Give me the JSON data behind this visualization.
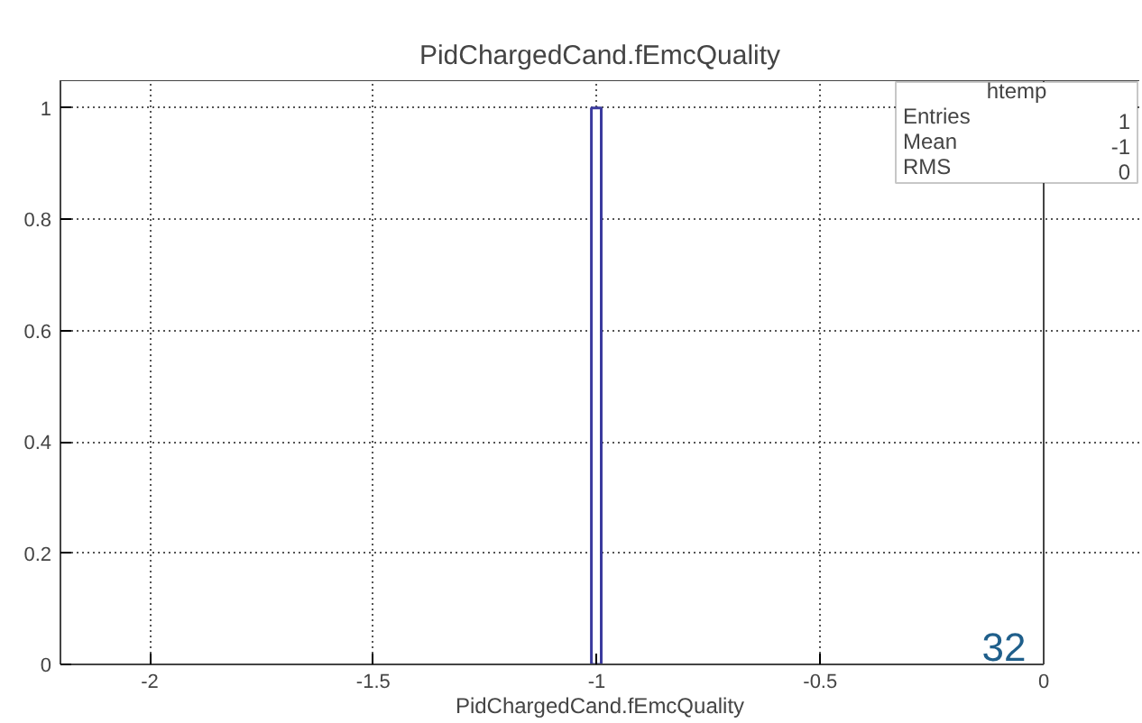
{
  "chart_data": {
    "type": "histogram",
    "title": "PidChargedCand.fEmcQuality",
    "xlabel": "PidChargedCand.fEmcQuality",
    "bins": [
      -1.012,
      -0.99
    ],
    "values": [
      1
    ],
    "color": "#3b3b9e",
    "xlim": [
      -2.2,
      0
    ],
    "xticks": [
      -2,
      -1.5,
      -1,
      -0.5,
      0
    ],
    "ylim": [
      0,
      1.05
    ],
    "yticks": [
      0,
      {
        "value": 0.2,
        "label": "0.2"
      },
      {
        "value": 0.4,
        "label": "0.4"
      },
      {
        "value": 0.6,
        "label": "0.6"
      },
      {
        "value": 0.8,
        "label": "0.8"
      },
      1
    ],
    "grid": true,
    "annotations": [
      "htemp",
      "Entries 1",
      "Mean -1",
      "RMS 0",
      "32"
    ]
  }
}
